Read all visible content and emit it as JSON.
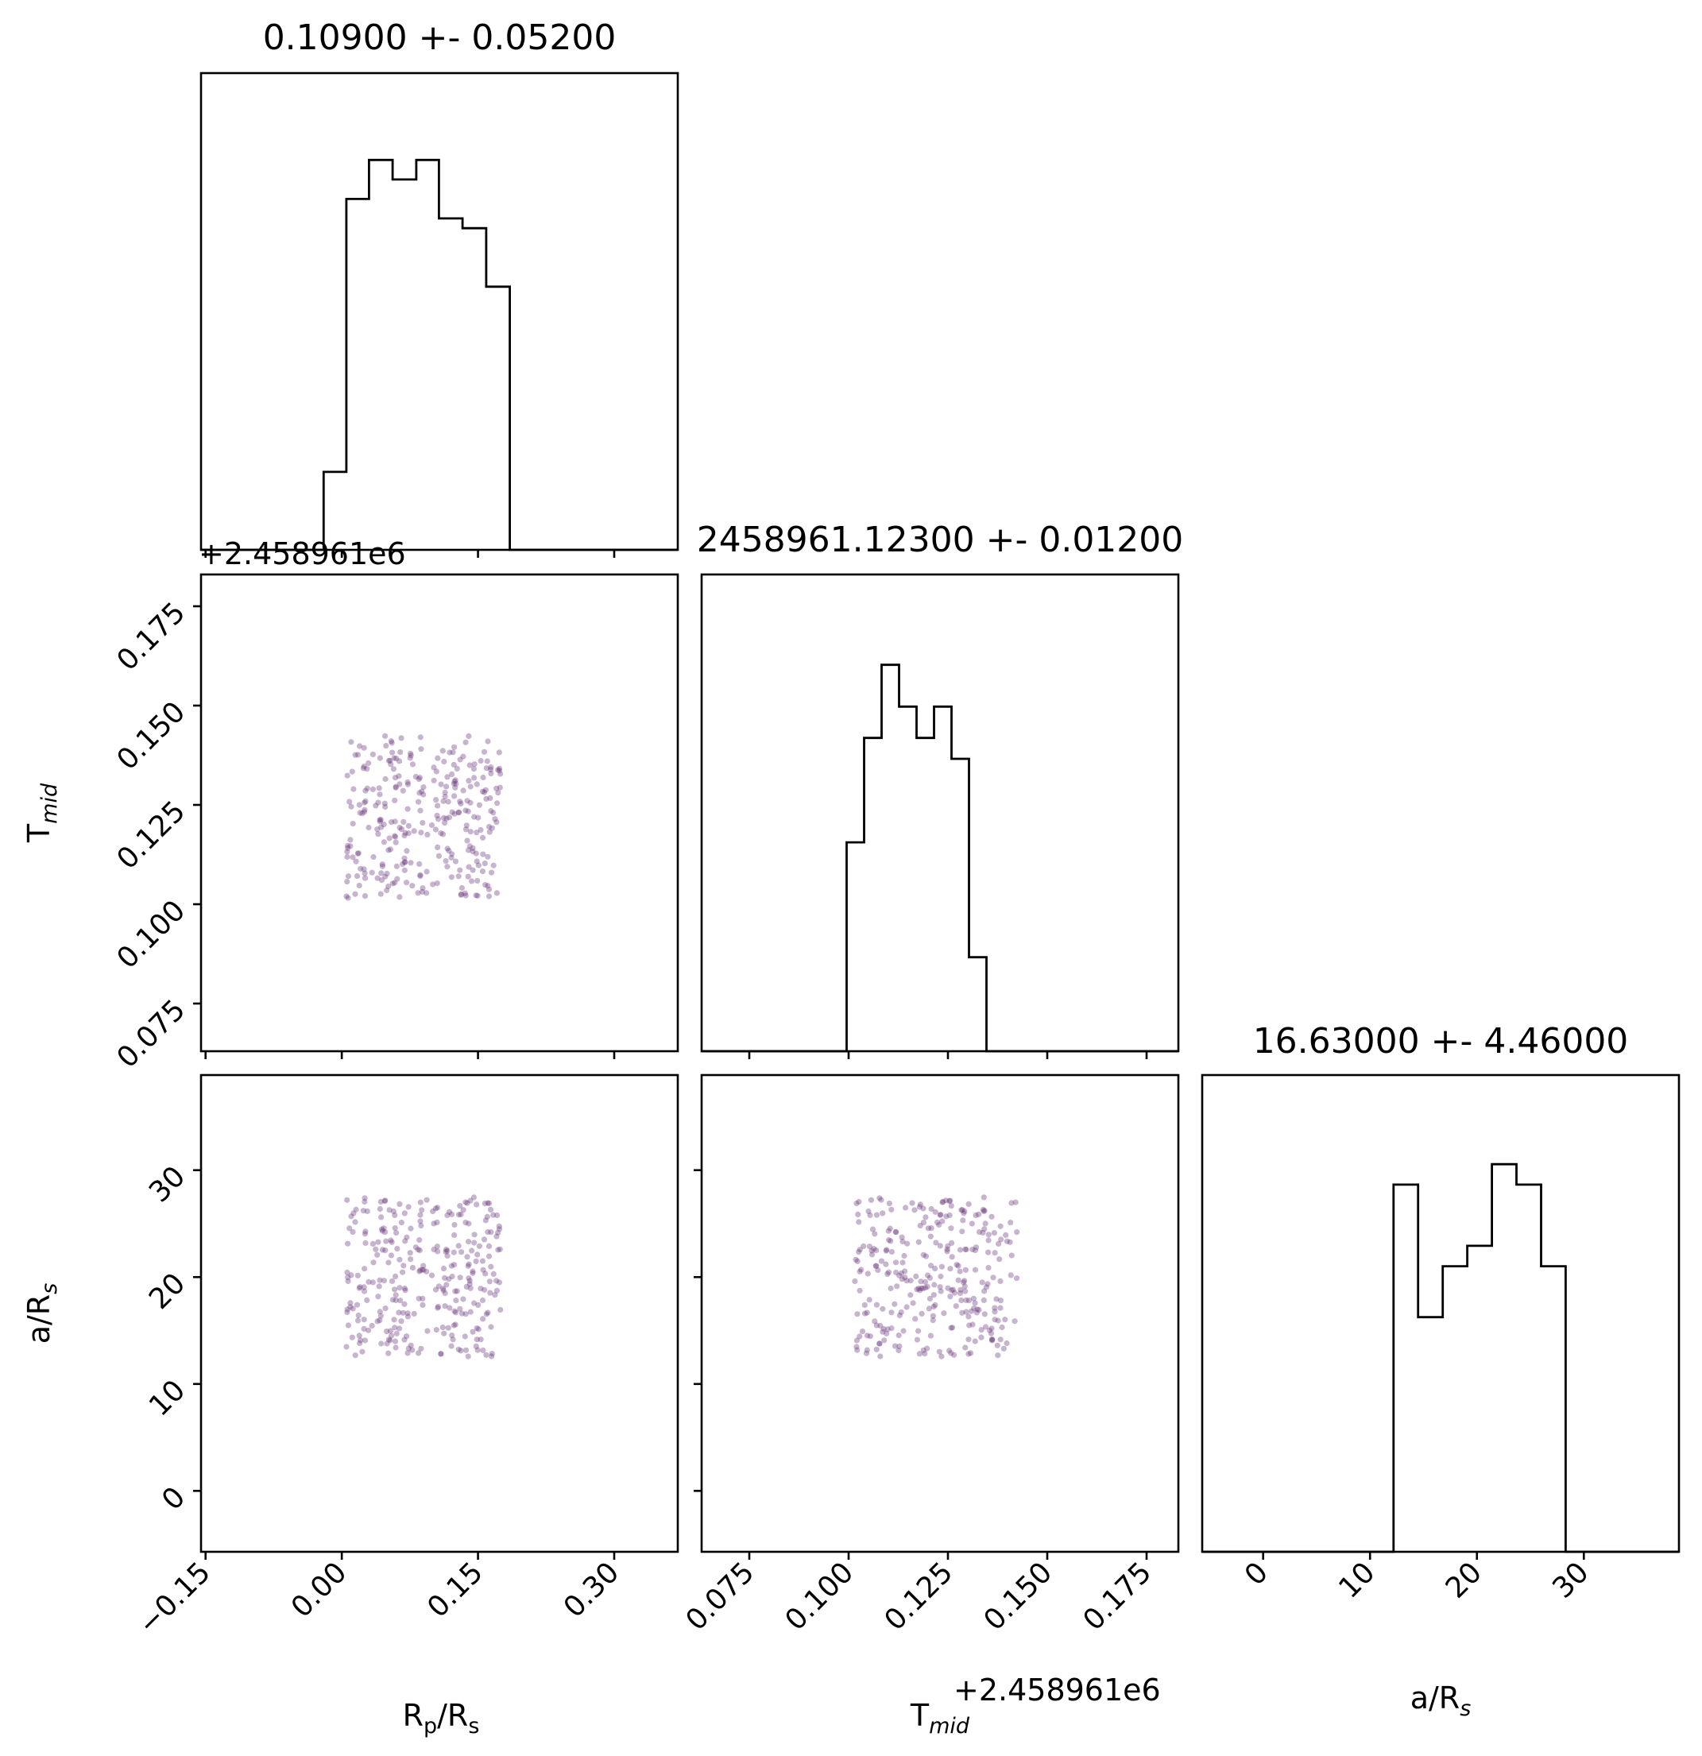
{
  "chart_data": {
    "type": "scatter",
    "layout": "corner-plot",
    "colors": {
      "points": "#6b3a7d",
      "lines": "#000000"
    },
    "params": [
      {
        "key": "rp",
        "label": "R",
        "label_sub": "p",
        "label_mid": "/R",
        "label_sub2": "s",
        "range": [
          -0.155,
          0.37
        ],
        "ticks": [
          -0.15,
          0.0,
          0.15,
          0.3
        ],
        "tick_labels": [
          "−0.15",
          "0.00",
          "0.15",
          "0.30"
        ]
      },
      {
        "key": "tmid",
        "label": "T",
        "label_sub": "mid",
        "label_mid": "",
        "label_sub2": "",
        "range": [
          0.063,
          0.183
        ],
        "ticks": [
          0.075,
          0.1,
          0.125,
          0.15,
          0.175
        ],
        "tick_labels": [
          "0.075",
          "0.100",
          "0.125",
          "0.150",
          "0.175"
        ],
        "offset_text": "+2.458961e6"
      },
      {
        "key": "ars",
        "label": "a/R",
        "label_sub": "s",
        "label_mid": "",
        "label_sub2": "",
        "range": [
          -5.7,
          38.9
        ],
        "ticks": [
          0,
          10,
          20,
          30
        ],
        "tick_labels": [
          "0",
          "10",
          "20",
          "30"
        ]
      }
    ],
    "titles": [
      "0.10900 +- 0.05200",
      "2458961.12300 +- 0.01200",
      "16.63000 +- 4.46000"
    ],
    "histograms": [
      {
        "param": "rp",
        "edges": [
          -0.155,
          0.0,
          0.0,
          0.02,
          0.02,
          0.04,
          0.04,
          0.06,
          0.06,
          0.08,
          0.08,
          0.1,
          0.1,
          0.12,
          0.12,
          0.14,
          0.14,
          0.165,
          0.165,
          0.37
        ],
        "bin_edges": [
          -0.155,
          -0.02,
          0.005,
          0.03,
          0.056,
          0.082,
          0.107,
          0.133,
          0.159,
          0.185,
          0.37
        ],
        "counts": [
          0,
          8,
          36,
          40,
          38,
          40,
          34,
          33,
          27,
          0
        ],
        "ymax": 45
      },
      {
        "param": "tmid",
        "bin_edges": [
          0.063,
          0.0995,
          0.1039,
          0.1083,
          0.1127,
          0.1171,
          0.1215,
          0.1259,
          0.1303,
          0.1347,
          0.1391,
          0.1435,
          0.1479,
          0.183
        ],
        "counts": [
          0,
          20,
          30,
          37,
          33,
          30,
          33,
          28,
          9,
          0,
          0,
          0,
          0
        ],
        "ymax": 42
      },
      {
        "param": "ars",
        "bin_edges": [
          -5.7,
          12.2,
          14.5,
          16.8,
          19.1,
          21.4,
          23.7,
          26.0,
          28.3,
          38.9
        ],
        "counts": [
          0,
          36,
          23,
          28,
          30,
          38,
          36,
          28,
          0
        ],
        "ymax": 43
      }
    ],
    "scatter_ranges": {
      "rp": [
        0.005,
        0.175
      ],
      "tmid": [
        0.1015,
        0.1425
      ],
      "ars": [
        12.5,
        27.5
      ]
    },
    "n_points": 300
  }
}
